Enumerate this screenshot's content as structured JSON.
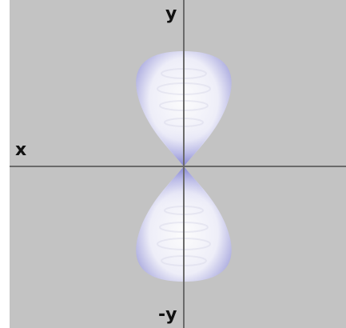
{
  "diagram": {
    "labels": {
      "y_positive": "y",
      "y_negative": "-y",
      "x": "x"
    },
    "colors": {
      "background": "#c3c3c3",
      "axis": "#6a6a6a",
      "lobe_highlight": "#ffffff",
      "lobe_shadow": "#8f8fd8",
      "label": "#111111"
    }
  }
}
